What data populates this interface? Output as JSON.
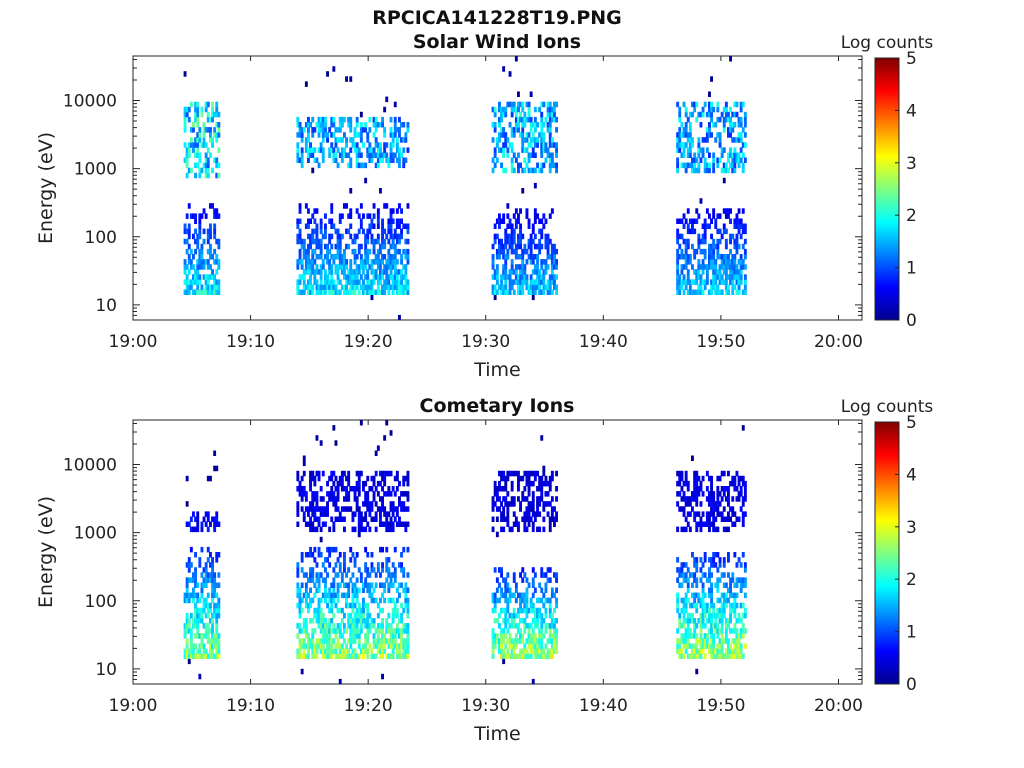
{
  "figure_title": "RPCICA141228T19.PNG",
  "chart_data": [
    {
      "type": "heatmap",
      "title": "Solar Wind Ions",
      "xlabel": "Time",
      "ylabel": "Energy (eV)",
      "x_ticks": [
        "19:00",
        "19:10",
        "19:20",
        "19:30",
        "19:40",
        "19:50",
        "20:00"
      ],
      "xlim_minutes": [
        0,
        62
      ],
      "y_scale": "log",
      "y_ticks": [
        "10",
        "100",
        "1000",
        "10000"
      ],
      "ylim": [
        6,
        45000
      ],
      "colorbar": {
        "label": "Log counts",
        "ticks": [
          "0",
          "1",
          "2",
          "3",
          "4",
          "5"
        ],
        "range": [
          0,
          5
        ],
        "colormap": "jet"
      },
      "bursts": [
        {
          "x0": 4.3,
          "x1": 7.2,
          "high_count": 2.5,
          "high_energy": [
            700,
            9000
          ],
          "low_count": 2.3,
          "low_energy": [
            15,
            300
          ]
        },
        {
          "x0": 13.9,
          "x1": 23.3,
          "high_count": 2.0,
          "high_energy": [
            1000,
            6000
          ],
          "low_count": 2.2,
          "low_energy": [
            15,
            300
          ]
        },
        {
          "x0": 30.5,
          "x1": 35.9,
          "high_count": 2.1,
          "high_energy": [
            900,
            9000
          ],
          "low_count": 2.0,
          "low_energy": [
            15,
            250
          ]
        },
        {
          "x0": 46.2,
          "x1": 52.0,
          "high_count": 2.0,
          "high_energy": [
            900,
            9000
          ],
          "low_count": 2.1,
          "low_energy": [
            15,
            250
          ]
        }
      ]
    },
    {
      "type": "heatmap",
      "title": "Cometary Ions",
      "xlabel": "Time",
      "ylabel": "Energy (eV)",
      "x_ticks": [
        "19:00",
        "19:10",
        "19:20",
        "19:30",
        "19:40",
        "19:50",
        "20:00"
      ],
      "xlim_minutes": [
        0,
        62
      ],
      "y_scale": "log",
      "y_ticks": [
        "10",
        "100",
        "1000",
        "10000"
      ],
      "ylim": [
        6,
        45000
      ],
      "colorbar": {
        "label": "Log counts",
        "ticks": [
          "0",
          "1",
          "2",
          "3",
          "4",
          "5"
        ],
        "range": [
          0,
          5
        ],
        "colormap": "jet"
      },
      "bursts": [
        {
          "x0": 4.3,
          "x1": 7.2,
          "high_count": 0.8,
          "high_energy": [
            1000,
            2000
          ],
          "low_count": 3.1,
          "low_energy": [
            15,
            600
          ]
        },
        {
          "x0": 13.9,
          "x1": 23.3,
          "high_count": 0.7,
          "high_energy": [
            1000,
            8000
          ],
          "low_count": 3.2,
          "low_energy": [
            15,
            600
          ]
        },
        {
          "x0": 30.5,
          "x1": 35.9,
          "high_count": 0.6,
          "high_energy": [
            1000,
            8000
          ],
          "low_count": 3.3,
          "low_energy": [
            15,
            300
          ]
        },
        {
          "x0": 46.2,
          "x1": 52.0,
          "high_count": 0.7,
          "high_energy": [
            1000,
            8000
          ],
          "low_count": 3.3,
          "low_energy": [
            15,
            500
          ]
        }
      ]
    }
  ]
}
